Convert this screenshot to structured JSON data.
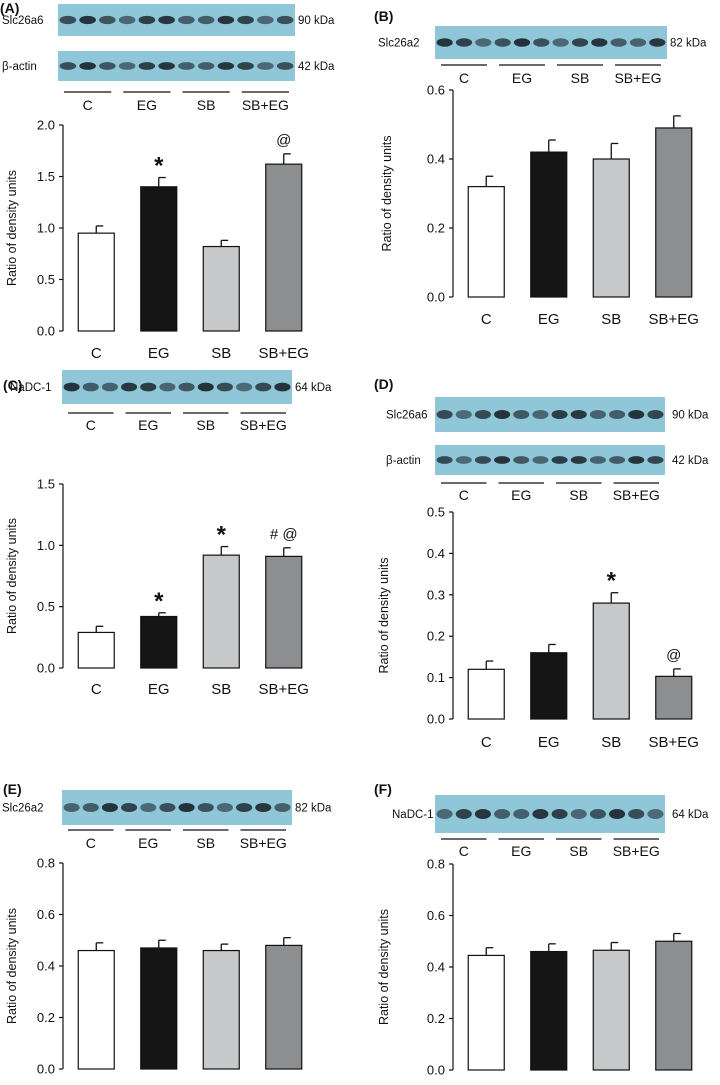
{
  "colors": {
    "C": "#ffffff",
    "EG": "#151515",
    "SB": "#c6c8ca",
    "SB+EG": "#8c8e90",
    "blot_bg": "#8fc6d8",
    "band": "#1f2b33"
  },
  "lane_labels": [
    "C",
    "EG",
    "SB",
    "SB+EG"
  ],
  "chart_data": [
    {
      "panel": "(A)",
      "type": "bar",
      "blots": [
        {
          "name": "Slc26a6",
          "kda": "90 kDa"
        },
        {
          "name": "β-actin",
          "kda": "42 kDa"
        }
      ],
      "categories": [
        "C",
        "EG",
        "SB",
        "SB+EG"
      ],
      "values": [
        0.95,
        1.4,
        0.82,
        1.62
      ],
      "errors": [
        0.07,
        0.09,
        0.06,
        0.1
      ],
      "annotations": [
        "",
        "*",
        "",
        "@"
      ],
      "ylabel": "Ratio of density units",
      "ylim": [
        0,
        2.0
      ],
      "yticks": [
        "0.0",
        "0.5",
        "1.0",
        "1.5",
        "2.0"
      ]
    },
    {
      "panel": "(B)",
      "type": "bar",
      "blots": [
        {
          "name": "Slc26a2",
          "kda": "82 kDa"
        }
      ],
      "categories": [
        "C",
        "EG",
        "SB",
        "SB+EG"
      ],
      "values": [
        0.32,
        0.42,
        0.4,
        0.49
      ],
      "errors": [
        0.03,
        0.035,
        0.045,
        0.035
      ],
      "annotations": [
        "",
        "",
        "",
        ""
      ],
      "ylabel": "Ratio of density units",
      "ylim": [
        0,
        0.6
      ],
      "yticks": [
        "0.0",
        "0.2",
        "0.4",
        "0.6"
      ]
    },
    {
      "panel": "(C)",
      "type": "bar",
      "blots": [
        {
          "name": "NaDC-1",
          "kda": "64 kDa"
        }
      ],
      "categories": [
        "C",
        "EG",
        "SB",
        "SB+EG"
      ],
      "values": [
        0.29,
        0.42,
        0.92,
        0.91
      ],
      "errors": [
        0.05,
        0.03,
        0.07,
        0.07
      ],
      "annotations": [
        "",
        "*",
        "*",
        "# @"
      ],
      "ylabel": "Ratio of density units",
      "ylim": [
        0,
        1.5
      ],
      "yticks": [
        "0.0",
        "0.5",
        "1.0",
        "1.5"
      ]
    },
    {
      "panel": "(D)",
      "type": "bar",
      "blots": [
        {
          "name": "Slc26a6",
          "kda": "90 kDa"
        },
        {
          "name": "β-actin",
          "kda": "42 kDa"
        }
      ],
      "categories": [
        "C",
        "EG",
        "SB",
        "SB+EG"
      ],
      "values": [
        0.12,
        0.16,
        0.28,
        0.103
      ],
      "errors": [
        0.02,
        0.02,
        0.025,
        0.018
      ],
      "annotations": [
        "",
        "",
        "*",
        "@"
      ],
      "ylabel": "Ratio of density units",
      "ylim": [
        0,
        0.5
      ],
      "yticks": [
        "0.0",
        "0.1",
        "0.2",
        "0.3",
        "0.4",
        "0.5"
      ]
    },
    {
      "panel": "(E)",
      "type": "bar",
      "blots": [
        {
          "name": "Slc26a2",
          "kda": "82 kDa"
        }
      ],
      "categories": [
        "C",
        "EG",
        "SB",
        "SB+EG"
      ],
      "values": [
        0.46,
        0.47,
        0.46,
        0.48
      ],
      "errors": [
        0.03,
        0.03,
        0.025,
        0.03
      ],
      "annotations": [
        "",
        "",
        "",
        ""
      ],
      "ylabel": "Ratio of density units",
      "ylim": [
        0,
        0.8
      ],
      "yticks": [
        "0.0",
        "0.2",
        "0.4",
        "0.6",
        "0.8"
      ]
    },
    {
      "panel": "(F)",
      "type": "bar",
      "blots": [
        {
          "name": "NaDC-1",
          "kda": "64 kDa"
        }
      ],
      "categories": [
        "C",
        "EG",
        "SB",
        "SB+EG"
      ],
      "values": [
        0.445,
        0.46,
        0.465,
        0.5
      ],
      "errors": [
        0.03,
        0.03,
        0.03,
        0.03
      ],
      "annotations": [
        "",
        "",
        "",
        ""
      ],
      "ylabel": "Ratio of density units",
      "ylim": [
        0,
        0.8
      ],
      "yticks": [
        "0.0",
        "0.2",
        "0.4",
        "0.6",
        "0.8"
      ]
    }
  ]
}
